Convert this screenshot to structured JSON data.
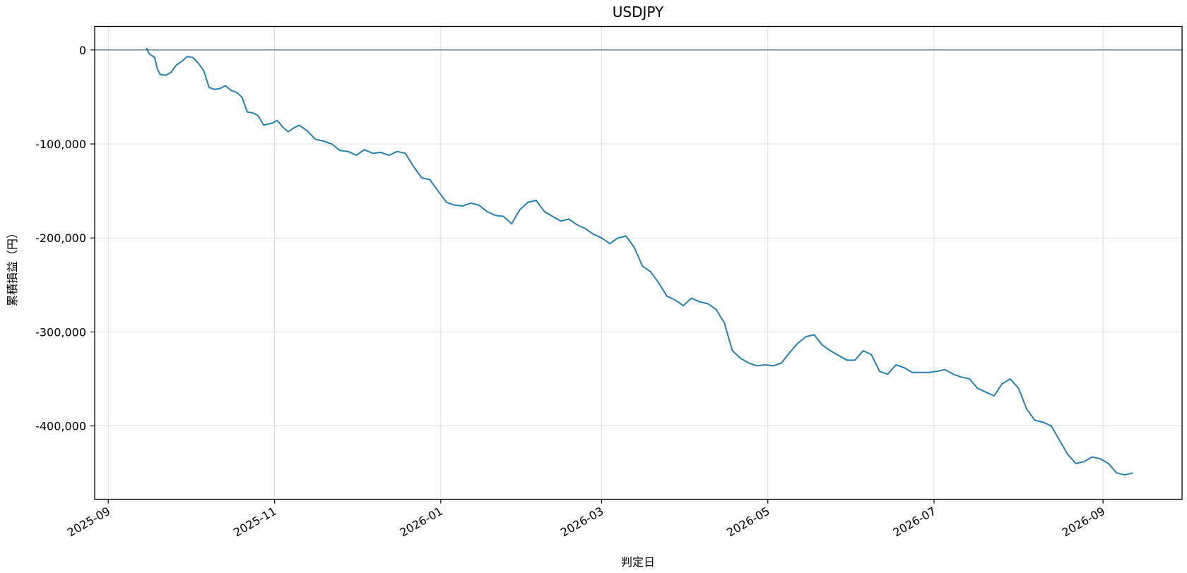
{
  "chart_data": {
    "type": "line",
    "title": "USDJPY",
    "xlabel": "判定日",
    "ylabel": "累積損益（円）",
    "x_ticks": [
      "2025-09",
      "2025-11",
      "2026-01",
      "2026-03",
      "2026-05",
      "2026-07",
      "2026-09"
    ],
    "y_ticks": [
      0,
      -100000,
      -200000,
      -300000,
      -400000
    ],
    "y_tick_labels": [
      "0",
      "-100,000",
      "-200,000",
      "-300,000",
      "-400,000"
    ],
    "xlim": [
      "2025-08-27",
      "2026-09-30"
    ],
    "ylim": [
      -478000,
      25000
    ],
    "grid": true,
    "reference_line": 0,
    "line_color": "#2a7ea8",
    "reference_color": "#5a7686",
    "series": [
      {
        "x": [
          "2025-09-15",
          "2025-09-16",
          "2025-09-17",
          "2025-09-18",
          "2025-09-19",
          "2025-09-20",
          "2025-09-22",
          "2025-09-24",
          "2025-09-26",
          "2025-09-28",
          "2025-09-30",
          "2025-10-02",
          "2025-10-04",
          "2025-10-06",
          "2025-10-08",
          "2025-10-10",
          "2025-10-12",
          "2025-10-14",
          "2025-10-16",
          "2025-10-18",
          "2025-10-20",
          "2025-10-22",
          "2025-10-24",
          "2025-10-26",
          "2025-10-28",
          "2025-10-31",
          "2025-11-02",
          "2025-11-04",
          "2025-11-06",
          "2025-11-08",
          "2025-11-10",
          "2025-11-13",
          "2025-11-16",
          "2025-11-19",
          "2025-11-22",
          "2025-11-25",
          "2025-11-28",
          "2025-12-01",
          "2025-12-04",
          "2025-12-07",
          "2025-12-10",
          "2025-12-13",
          "2025-12-16",
          "2025-12-19",
          "2025-12-22",
          "2025-12-25",
          "2025-12-28",
          "2025-12-31",
          "2026-01-03",
          "2026-01-06",
          "2026-01-09",
          "2026-01-12",
          "2026-01-15",
          "2026-01-18",
          "2026-01-21",
          "2026-01-24",
          "2026-01-27",
          "2026-01-30",
          "2026-02-02",
          "2026-02-05",
          "2026-02-08",
          "2026-02-11",
          "2026-02-14",
          "2026-02-17",
          "2026-02-20",
          "2026-02-23",
          "2026-02-26",
          "2026-03-01",
          "2026-03-04",
          "2026-03-07",
          "2026-03-10",
          "2026-03-13",
          "2026-03-16",
          "2026-03-19",
          "2026-03-22",
          "2026-03-25",
          "2026-03-28",
          "2026-03-31",
          "2026-04-03",
          "2026-04-06",
          "2026-04-09",
          "2026-04-12",
          "2026-04-15",
          "2026-04-18",
          "2026-04-21",
          "2026-04-24",
          "2026-04-27",
          "2026-04-30",
          "2026-05-03",
          "2026-05-06",
          "2026-05-09",
          "2026-05-12",
          "2026-05-15",
          "2026-05-18",
          "2026-05-21",
          "2026-05-24",
          "2026-05-27",
          "2026-05-30",
          "2026-06-02",
          "2026-06-05",
          "2026-06-08",
          "2026-06-11",
          "2026-06-14",
          "2026-06-17",
          "2026-06-20",
          "2026-06-23",
          "2026-06-26",
          "2026-06-29",
          "2026-07-02",
          "2026-07-05",
          "2026-07-08",
          "2026-07-11",
          "2026-07-14",
          "2026-07-17",
          "2026-07-20",
          "2026-07-23",
          "2026-07-26",
          "2026-07-29",
          "2026-08-01",
          "2026-08-04",
          "2026-08-07",
          "2026-08-10",
          "2026-08-13",
          "2026-08-16",
          "2026-08-19",
          "2026-08-22",
          "2026-08-25",
          "2026-08-28",
          "2026-08-31",
          "2026-09-03",
          "2026-09-06",
          "2026-09-09",
          "2026-09-12"
        ],
        "y": [
          2000,
          -4000,
          -6000,
          -8000,
          -20000,
          -26000,
          -27000,
          -24000,
          -16000,
          -12000,
          -7000,
          -8000,
          -14000,
          -22000,
          -40000,
          -42000,
          -41000,
          -38000,
          -43000,
          -45000,
          -50000,
          -66000,
          -67000,
          -70000,
          -80000,
          -78000,
          -75000,
          -82000,
          -87000,
          -83000,
          -80000,
          -86000,
          -95000,
          -97000,
          -100000,
          -107000,
          -108000,
          -112000,
          -106000,
          -110000,
          -109000,
          -112000,
          -108000,
          -110000,
          -124000,
          -136000,
          -138000,
          -150000,
          -162000,
          -165000,
          -166000,
          -163000,
          -165000,
          -172000,
          -176000,
          -177000,
          -185000,
          -170000,
          -162000,
          -160000,
          -172000,
          -177000,
          -182000,
          -180000,
          -186000,
          -190000,
          -196000,
          -200000,
          -206000,
          -200000,
          -198000,
          -210000,
          -230000,
          -236000,
          -248000,
          -262000,
          -266000,
          -272000,
          -264000,
          -268000,
          -270000,
          -276000,
          -290000,
          -320000,
          -328000,
          -333000,
          -336000,
          -335000,
          -336000,
          -333000,
          -322000,
          -312000,
          -305000,
          -303000,
          -314000,
          -320000,
          -325000,
          -330000,
          -330000,
          -320000,
          -324000,
          -342000,
          -345000,
          -335000,
          -338000,
          -343000,
          -343000,
          -343000,
          -342000,
          -340000,
          -345000,
          -348000,
          -350000,
          -360000,
          -364000,
          -368000,
          -355000,
          -350000,
          -360000,
          -382000,
          -394000,
          -396000,
          -400000,
          -415000,
          -430000,
          -440000,
          -438000,
          -433000,
          -435000,
          -440000,
          -450000,
          -452000,
          -450000
        ]
      }
    ]
  }
}
